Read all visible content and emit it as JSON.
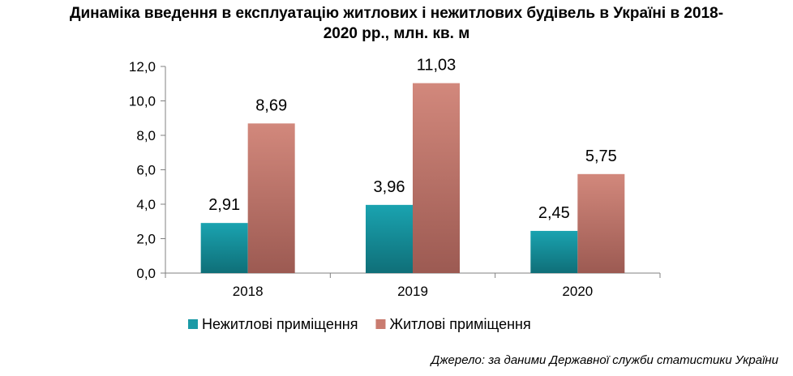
{
  "chart_data": {
    "type": "bar",
    "title_line1": "Динаміка введення в експлуатацію житлових і нежитлових будівель в Україні в 2018-",
    "title_line2": "2020 рр., млн. кв. м",
    "categories": [
      "2018",
      "2019",
      "2020"
    ],
    "series": [
      {
        "name": "Нежитлові приміщення",
        "values": [
          2.91,
          3.96,
          2.45
        ],
        "labels": [
          "2,91",
          "3,96",
          "2,45"
        ],
        "color": "#1a9aa6"
      },
      {
        "name": "Житлові приміщення",
        "values": [
          8.69,
          11.03,
          5.75
        ],
        "labels": [
          "8,69",
          "11,03",
          "5,75"
        ],
        "color": "#c97b6f"
      }
    ],
    "ylim": [
      0,
      12
    ],
    "yticks": [
      0,
      2,
      4,
      6,
      8,
      10,
      12
    ],
    "ytick_labels": [
      "0,0",
      "2,0",
      "4,0",
      "6,0",
      "8,0",
      "10,0",
      "12,0"
    ],
    "grid": false,
    "legend_position": "bottom"
  },
  "source": "Джерело: за даними Державної служби статистики України"
}
